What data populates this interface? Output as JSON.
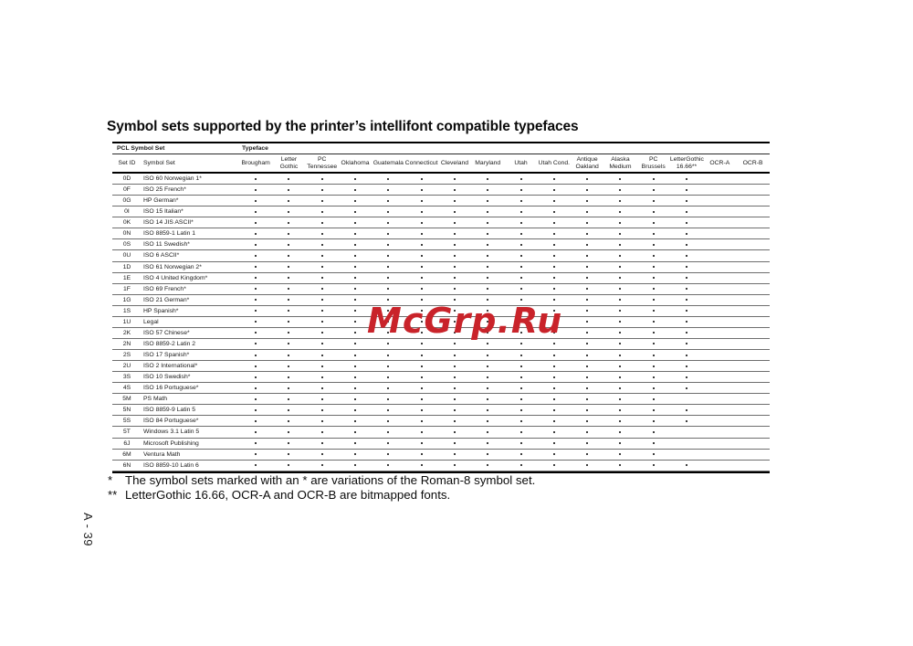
{
  "page": {
    "title": "Symbol sets supported by the printer’s intellifont compatible typefaces",
    "watermark_text": "McGrp.Ru",
    "watermark_color": "#c9232a",
    "vertical_page_number": "A - 39"
  },
  "table": {
    "group_left": "PCL Symbol Set",
    "group_right": "Typeface",
    "id_header": "Set ID",
    "name_header": "Symbol Set",
    "typefaces": [
      "Brougham",
      "Letter\nGothic",
      "PC\nTennessee",
      "Oklahoma",
      "Guatemala",
      "Connecticut",
      "Cleveland",
      "Maryland",
      "Utah",
      "Utah Cond.",
      "Antique\nOakland",
      "Alaska\nMedium",
      "PC\nBrussels",
      "LetterGothic\n16.66**",
      "OCR-A",
      "OCR-B"
    ],
    "rows": [
      {
        "id": "0D",
        "name": "ISO 60 Norwegian 1*",
        "dots": [
          1,
          1,
          1,
          1,
          1,
          1,
          1,
          1,
          1,
          1,
          1,
          1,
          1,
          1,
          0,
          0
        ]
      },
      {
        "id": "0F",
        "name": "ISO 25 French*",
        "dots": [
          1,
          1,
          1,
          1,
          1,
          1,
          1,
          1,
          1,
          1,
          1,
          1,
          1,
          1,
          0,
          0
        ]
      },
      {
        "id": "0G",
        "name": "HP German*",
        "dots": [
          1,
          1,
          1,
          1,
          1,
          1,
          1,
          1,
          1,
          1,
          1,
          1,
          1,
          1,
          0,
          0
        ]
      },
      {
        "id": "0I",
        "name": "ISO 15 Italian*",
        "dots": [
          1,
          1,
          1,
          1,
          1,
          1,
          1,
          1,
          1,
          1,
          1,
          1,
          1,
          1,
          0,
          0
        ]
      },
      {
        "id": "0K",
        "name": "ISO 14 JIS ASCII*",
        "dots": [
          1,
          1,
          1,
          1,
          1,
          1,
          1,
          1,
          1,
          1,
          1,
          1,
          1,
          1,
          0,
          0
        ]
      },
      {
        "id": "0N",
        "name": "ISO 8859-1 Latin 1",
        "dots": [
          1,
          1,
          1,
          1,
          1,
          1,
          1,
          1,
          1,
          1,
          1,
          1,
          1,
          1,
          0,
          0
        ]
      },
      {
        "id": "0S",
        "name": "ISO 11 Swedish*",
        "dots": [
          1,
          1,
          1,
          1,
          1,
          1,
          1,
          1,
          1,
          1,
          1,
          1,
          1,
          1,
          0,
          0
        ]
      },
      {
        "id": "0U",
        "name": "ISO 6 ASCII*",
        "dots": [
          1,
          1,
          1,
          1,
          1,
          1,
          1,
          1,
          1,
          1,
          1,
          1,
          1,
          1,
          0,
          0
        ]
      },
      {
        "id": "1D",
        "name": "ISO 61 Norwegian 2*",
        "dots": [
          1,
          1,
          1,
          1,
          1,
          1,
          1,
          1,
          1,
          1,
          1,
          1,
          1,
          1,
          0,
          0
        ]
      },
      {
        "id": "1E",
        "name": "ISO 4 United Kingdom*",
        "dots": [
          1,
          1,
          1,
          1,
          1,
          1,
          1,
          1,
          1,
          1,
          1,
          1,
          1,
          1,
          0,
          0
        ]
      },
      {
        "id": "1F",
        "name": "ISO 69 French*",
        "dots": [
          1,
          1,
          1,
          1,
          1,
          1,
          1,
          1,
          1,
          1,
          1,
          1,
          1,
          1,
          0,
          0
        ]
      },
      {
        "id": "1G",
        "name": "ISO 21 German*",
        "dots": [
          1,
          1,
          1,
          1,
          1,
          1,
          1,
          1,
          1,
          1,
          1,
          1,
          1,
          1,
          0,
          0
        ]
      },
      {
        "id": "1S",
        "name": "HP Spanish*",
        "dots": [
          1,
          1,
          1,
          1,
          1,
          1,
          1,
          1,
          1,
          1,
          1,
          1,
          1,
          1,
          0,
          0
        ]
      },
      {
        "id": "1U",
        "name": "Legal",
        "dots": [
          1,
          1,
          1,
          1,
          1,
          1,
          1,
          1,
          1,
          1,
          1,
          1,
          1,
          1,
          0,
          0
        ]
      },
      {
        "id": "2K",
        "name": "ISO 57 Chinese*",
        "dots": [
          1,
          1,
          1,
          1,
          1,
          1,
          1,
          1,
          1,
          1,
          1,
          1,
          1,
          1,
          0,
          0
        ]
      },
      {
        "id": "2N",
        "name": "ISO 8859-2 Latin 2",
        "dots": [
          1,
          1,
          1,
          1,
          1,
          1,
          1,
          1,
          1,
          1,
          1,
          1,
          1,
          1,
          0,
          0
        ]
      },
      {
        "id": "2S",
        "name": "ISO 17 Spanish*",
        "dots": [
          1,
          1,
          1,
          1,
          1,
          1,
          1,
          1,
          1,
          1,
          1,
          1,
          1,
          1,
          0,
          0
        ]
      },
      {
        "id": "2U",
        "name": "ISO 2 International*",
        "dots": [
          1,
          1,
          1,
          1,
          1,
          1,
          1,
          1,
          1,
          1,
          1,
          1,
          1,
          1,
          0,
          0
        ]
      },
      {
        "id": "3S",
        "name": "ISO 10 Swedish*",
        "dots": [
          1,
          1,
          1,
          1,
          1,
          1,
          1,
          1,
          1,
          1,
          1,
          1,
          1,
          1,
          0,
          0
        ]
      },
      {
        "id": "4S",
        "name": "ISO 16 Portuguese*",
        "dots": [
          1,
          1,
          1,
          1,
          1,
          1,
          1,
          1,
          1,
          1,
          1,
          1,
          1,
          1,
          0,
          0
        ]
      },
      {
        "id": "5M",
        "name": "PS Math",
        "dots": [
          1,
          1,
          1,
          1,
          1,
          1,
          1,
          1,
          1,
          1,
          1,
          1,
          1,
          0,
          0,
          0
        ]
      },
      {
        "id": "5N",
        "name": "ISO 8859-9 Latin 5",
        "dots": [
          1,
          1,
          1,
          1,
          1,
          1,
          1,
          1,
          1,
          1,
          1,
          1,
          1,
          1,
          0,
          0
        ]
      },
      {
        "id": "5S",
        "name": "ISO 84 Portuguese*",
        "dots": [
          1,
          1,
          1,
          1,
          1,
          1,
          1,
          1,
          1,
          1,
          1,
          1,
          1,
          1,
          0,
          0
        ]
      },
      {
        "id": "5T",
        "name": "Windows 3.1 Latin 5",
        "dots": [
          1,
          1,
          1,
          1,
          1,
          1,
          1,
          1,
          1,
          1,
          1,
          1,
          1,
          0,
          0,
          0
        ]
      },
      {
        "id": "6J",
        "name": "Microsoft Publishing",
        "dots": [
          1,
          1,
          1,
          1,
          1,
          1,
          1,
          1,
          1,
          1,
          1,
          1,
          1,
          0,
          0,
          0
        ]
      },
      {
        "id": "6M",
        "name": "Ventura Math",
        "dots": [
          1,
          1,
          1,
          1,
          1,
          1,
          1,
          1,
          1,
          1,
          1,
          1,
          1,
          0,
          0,
          0
        ]
      },
      {
        "id": "6N",
        "name": "ISO 8859-10 Latin 6",
        "dots": [
          1,
          1,
          1,
          1,
          1,
          1,
          1,
          1,
          1,
          1,
          1,
          1,
          1,
          1,
          0,
          0
        ]
      }
    ]
  },
  "footnotes": [
    {
      "marker": "*",
      "text": "The symbol sets marked with an * are variations of the Roman-8 symbol set."
    },
    {
      "marker": "**",
      "text": "LetterGothic 16.66, OCR-A and OCR-B are bitmapped fonts."
    }
  ]
}
